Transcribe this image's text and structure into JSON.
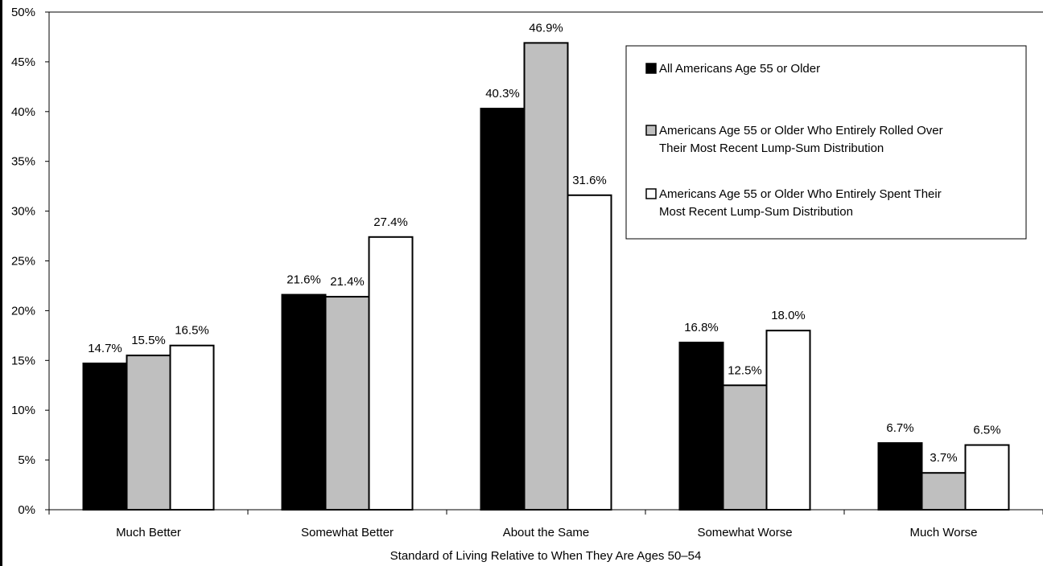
{
  "chart_data": {
    "type": "bar",
    "title": "",
    "xlabel": "Standard of Living Relative to When They Are Ages 50–54",
    "ylabel": "",
    "ylim": [
      0,
      50
    ],
    "yticks": [
      "0%",
      "5%",
      "10%",
      "15%",
      "20%",
      "25%",
      "30%",
      "35%",
      "40%",
      "45%",
      "50%"
    ],
    "categories": [
      "Much Better",
      "Somewhat Better",
      "About the Same",
      "Somewhat Worse",
      "Much Worse"
    ],
    "series": [
      {
        "name": "All Americans Age 55 or Older",
        "values": [
          14.7,
          21.6,
          40.3,
          16.8,
          6.7
        ],
        "labels": [
          "14.7%",
          "21.6%",
          "40.3%",
          "16.8%",
          "6.7%"
        ],
        "color": "#000000"
      },
      {
        "name": "Americans Age 55 or Older Who Entirely Rolled Over Their Most Recent Lump-Sum Distribution",
        "name_lines": [
          "Americans Age 55 or Older Who Entirely Rolled Over",
          "Their Most Recent Lump-Sum Distribution"
        ],
        "values": [
          15.5,
          21.4,
          46.9,
          12.5,
          3.7
        ],
        "labels": [
          "15.5%",
          "21.4%",
          "46.9%",
          "12.5%",
          "3.7%"
        ],
        "color": "#bfbfbf"
      },
      {
        "name": "Americans Age 55 or Older Who Entirely Spent Their Most Recent Lump-Sum Distribution",
        "name_lines": [
          "Americans Age 55 or Older Who Entirely Spent Their",
          "Most Recent Lump-Sum Distribution"
        ],
        "values": [
          16.5,
          27.4,
          31.6,
          18.0,
          6.5
        ],
        "labels": [
          "16.5%",
          "27.4%",
          "31.6%",
          "18.0%",
          "6.5%"
        ],
        "color": "#ffffff"
      }
    ],
    "legend": "top-right",
    "grid": false
  }
}
